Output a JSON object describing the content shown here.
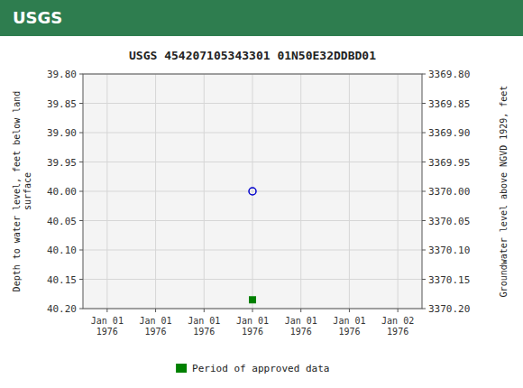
{
  "chart_data": {
    "type": "scatter",
    "title": "USGS 454207105343301 01N50E32DDBD01",
    "annotations": [
      {
        "text": "USGS"
      }
    ],
    "y_label": "Depth to water level, feet below land\nsurface",
    "y2_label": "Groundwater level above NGVD 1929, feet",
    "categories": [
      "Jan 01\n1976",
      "Jan 01\n1976",
      "Jan 01\n1976",
      "Jan 01\n1976",
      "Jan 01\n1976",
      "Jan 01\n1976",
      "Jan 02\n1976"
    ],
    "series": [
      {
        "values": [
          null,
          null,
          null,
          40.0,
          null,
          null,
          null
        ],
        "color": "#0000cc",
        "marker": "circle"
      },
      {
        "name": "Period of approved data",
        "values": [
          null,
          null,
          null,
          40.185,
          null,
          null,
          null
        ],
        "color": "#008000",
        "marker": "square"
      }
    ],
    "ylim": [
      40.2,
      39.8
    ],
    "yticks": [
      {
        "value": 39.8,
        "label": "39.80"
      },
      {
        "value": 39.85,
        "label": "39.85"
      },
      {
        "value": 39.9,
        "label": "39.90"
      },
      {
        "value": 39.95,
        "label": "39.95"
      },
      {
        "value": 40.0,
        "label": "40.00"
      },
      {
        "value": 40.05,
        "label": "40.05"
      },
      {
        "value": 40.1,
        "label": "40.10"
      },
      {
        "value": 40.15,
        "label": "40.15"
      },
      {
        "value": 40.2,
        "label": "40.20"
      }
    ],
    "y2lim": [
      3370.2,
      3369.8
    ],
    "y2ticks": [
      {
        "value": 3369.8,
        "label": "3369.80"
      },
      {
        "value": 3369.85,
        "label": "3369.85"
      },
      {
        "value": 3369.9,
        "label": "3369.90"
      },
      {
        "value": 3369.95,
        "label": "3369.95"
      },
      {
        "value": 3370.0,
        "label": "3370.00"
      },
      {
        "value": 3370.05,
        "label": "3370.05"
      },
      {
        "value": 3370.1,
        "label": "3370.10"
      },
      {
        "value": 3370.15,
        "label": "3370.15"
      },
      {
        "value": 3370.2,
        "label": "3370.20"
      }
    ],
    "grid": true,
    "legend": "bottom"
  }
}
